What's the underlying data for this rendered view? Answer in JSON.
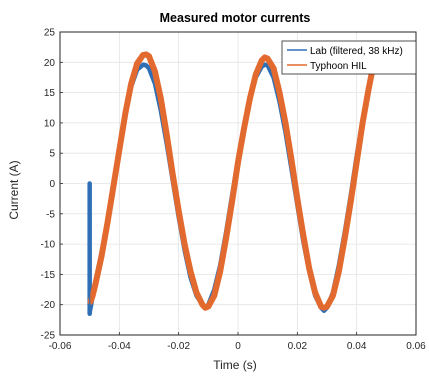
{
  "chart_data": {
    "type": "line",
    "title": "Measured motor currents",
    "xlabel": "Time (s)",
    "ylabel": "Current (A)",
    "xlim": [
      -0.06,
      0.06
    ],
    "ylim": [
      -25,
      25
    ],
    "xticks": [
      -0.06,
      -0.04,
      -0.02,
      0,
      0.02,
      0.04,
      0.06
    ],
    "xtick_labels": [
      "-0.06",
      "-0.04",
      "-0.02",
      "0",
      "0.02",
      "0.04",
      "0.06"
    ],
    "yticks": [
      -25,
      -20,
      -15,
      -10,
      -5,
      0,
      5,
      10,
      15,
      20,
      25
    ],
    "ytick_labels": [
      "-25",
      "-20",
      "-15",
      "-10",
      "-5",
      "0",
      "5",
      "10",
      "15",
      "20",
      "25"
    ],
    "grid": true,
    "legend_position": "top-right",
    "series": [
      {
        "name": "Lab (filtered, 38 kHz)",
        "color": "#2f6fb5",
        "x": [
          -0.05,
          -0.05,
          -0.0499,
          -0.0495,
          -0.049,
          -0.048,
          -0.046,
          -0.044,
          -0.042,
          -0.04,
          -0.038,
          -0.036,
          -0.034,
          -0.032,
          -0.031,
          -0.03,
          -0.028,
          -0.026,
          -0.024,
          -0.022,
          -0.02,
          -0.018,
          -0.016,
          -0.014,
          -0.012,
          -0.011,
          -0.01,
          -0.008,
          -0.006,
          -0.004,
          -0.002,
          0,
          0.002,
          0.004,
          0.006,
          0.008,
          0.009,
          0.01,
          0.012,
          0.014,
          0.016,
          0.018,
          0.02,
          0.022,
          0.024,
          0.026,
          0.028,
          0.029,
          0.03,
          0.032,
          0.034,
          0.036,
          0.038,
          0.04,
          0.042,
          0.044,
          0.046
        ],
        "y": [
          0,
          -21.5,
          -21,
          -20,
          -18.5,
          -16,
          -11.5,
          -6,
          0,
          6,
          11.5,
          16,
          18.8,
          19.6,
          19.5,
          19,
          16.5,
          12,
          6.5,
          0.5,
          -5.5,
          -11,
          -15.5,
          -18.5,
          -20,
          -20.5,
          -20,
          -17.5,
          -13.5,
          -8,
          -2,
          4,
          9.5,
          14,
          17.5,
          19.3,
          19.6,
          19.5,
          17.5,
          13.5,
          8.5,
          2.5,
          -3.5,
          -9.5,
          -14.5,
          -18.5,
          -20.5,
          -21,
          -20.5,
          -18,
          -13.5,
          -8,
          -2,
          4.5,
          10.5,
          16,
          20.5
        ]
      },
      {
        "name": "Typhoon HIL",
        "color": "#e36a2e",
        "x": [
          -0.0497,
          -0.049,
          -0.048,
          -0.046,
          -0.044,
          -0.042,
          -0.04,
          -0.038,
          -0.036,
          -0.034,
          -0.032,
          -0.031,
          -0.03,
          -0.028,
          -0.026,
          -0.024,
          -0.022,
          -0.02,
          -0.018,
          -0.016,
          -0.014,
          -0.012,
          -0.011,
          -0.01,
          -0.008,
          -0.006,
          -0.004,
          -0.002,
          0,
          0.002,
          0.004,
          0.006,
          0.008,
          0.009,
          0.01,
          0.012,
          0.014,
          0.016,
          0.018,
          0.02,
          0.022,
          0.024,
          0.026,
          0.028,
          0.029,
          0.03,
          0.032,
          0.034,
          0.036,
          0.038,
          0.04,
          0.042,
          0.044,
          0.046
        ],
        "y": [
          -19.5,
          -18.5,
          -16.5,
          -12,
          -6.5,
          -0.5,
          5.5,
          11.5,
          16.5,
          19.8,
          21.2,
          21.3,
          21,
          18.5,
          14,
          8,
          1.5,
          -4.5,
          -10,
          -14.5,
          -18,
          -20,
          -20.5,
          -20.3,
          -18.5,
          -14.5,
          -9,
          -3,
          3.5,
          9,
          14,
          18,
          20.3,
          20.8,
          20.6,
          19,
          15,
          10,
          4,
          -2.5,
          -8.5,
          -14,
          -18,
          -20.3,
          -20.5,
          -20.3,
          -18.5,
          -14.5,
          -9,
          -3,
          3.5,
          10,
          15.5,
          20.5
        ]
      }
    ]
  }
}
